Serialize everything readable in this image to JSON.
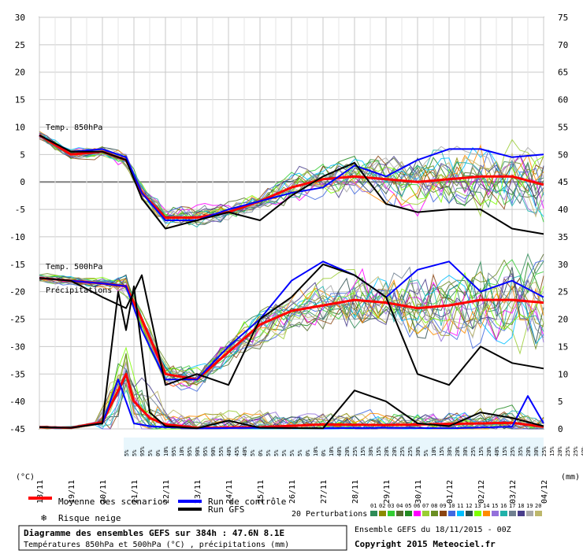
{
  "chart_data": {
    "type": "line",
    "title": "Diagramme des ensembles GEFS sur 384h : 47.6N 8.1E",
    "subtitle": "Températures 850hPa et 500hPa (°C) , précipitations (mm)",
    "source": "Ensemble GEFS du 18/11/2015 - 00Z",
    "copyright": "Copyright 2015 Meteociel.fr",
    "left_axis": {
      "unit_label": "(°C)",
      "ticks": [
        30,
        25,
        20,
        15,
        10,
        5,
        0,
        -5,
        -10,
        -15,
        -20,
        -25,
        -30,
        -35,
        -40,
        -45
      ],
      "range": [
        -45,
        30
      ]
    },
    "right_axis": {
      "unit_label": "(mm)",
      "ticks": [
        75,
        70,
        65,
        60,
        55,
        50,
        45,
        40,
        35,
        30,
        25,
        20,
        15,
        10,
        5,
        0
      ],
      "range": [
        0,
        75
      ]
    },
    "x_dates": [
      "18/11",
      "19/11",
      "20/11",
      "21/11",
      "22/11",
      "23/11",
      "24/11",
      "25/11",
      "26/11",
      "27/11",
      "28/11",
      "29/11",
      "30/11",
      "01/12",
      "02/12",
      "03/12",
      "04/12"
    ],
    "x_hours": [
      0,
      24,
      48,
      72,
      96,
      120,
      144,
      168,
      192,
      216,
      240,
      264,
      288,
      312,
      336,
      360,
      384
    ],
    "panel_labels": [
      "Temp. 850hPa",
      "Temp. 500hPa",
      "Précipitations"
    ],
    "snow_risk_percent": [
      "5%",
      "5%",
      "95%",
      "5%",
      "0%",
      "10%",
      "95%",
      "10%",
      "95%",
      "90%",
      "95%",
      "90%",
      "55%",
      "40%",
      "45%",
      "40%",
      "5%",
      "0%",
      "5%",
      "5%",
      "5%",
      "5%",
      "5%",
      "0%",
      "10%",
      "0%",
      "10%",
      "40%",
      "20%",
      "25%",
      "15%",
      "30%",
      "15%",
      "20%",
      "20%",
      "25%",
      "25%",
      "30%",
      "5%",
      "10%",
      "15%",
      "30%",
      "20%",
      "30%",
      "25%",
      "15%",
      "20%",
      "40%",
      "15%",
      "25%",
      "35%",
      "20%",
      "30%",
      "25%",
      "15%",
      "20%",
      "25%",
      "25%",
      "40%",
      "25%",
      "30%",
      "40%"
    ],
    "series": [
      {
        "name": "Moyenne des scénarios",
        "color": "#ff0000",
        "group": "850hPa",
        "x": [
          0,
          24,
          48,
          66,
          78,
          96,
          120,
          144,
          168,
          192,
          216,
          240,
          264,
          288,
          312,
          336,
          360,
          384
        ],
        "values": [
          8.5,
          5,
          5.5,
          4,
          -2,
          -6.5,
          -6.5,
          -5.5,
          -3.5,
          -1,
          0.5,
          1,
          0.5,
          0,
          0.5,
          1,
          1,
          -0.5
        ]
      },
      {
        "name": "Run de contrôle",
        "color": "#0000ff",
        "group": "850hPa",
        "x": [
          0,
          24,
          48,
          66,
          78,
          96,
          120,
          144,
          168,
          192,
          216,
          240,
          264,
          288,
          312,
          336,
          360,
          384
        ],
        "values": [
          8.5,
          5.5,
          6,
          4.5,
          -2,
          -7,
          -7,
          -5,
          -3.5,
          -2,
          -1,
          3,
          1,
          4,
          6,
          6,
          4.5,
          5
        ]
      },
      {
        "name": "Run GFS",
        "color": "#000000",
        "group": "850hPa",
        "x": [
          0,
          24,
          48,
          66,
          78,
          96,
          120,
          144,
          168,
          192,
          216,
          240,
          264,
          288,
          312,
          336,
          360,
          384
        ],
        "values": [
          8.5,
          5.5,
          5.5,
          4,
          -3,
          -8.5,
          -7,
          -5.5,
          -7,
          -2.5,
          1,
          3.5,
          -4,
          -5.5,
          -5,
          -5,
          -8.5,
          -9.5
        ]
      },
      {
        "name": "Moyenne des scénarios",
        "color": "#ff0000",
        "group": "500hPa",
        "x": [
          0,
          24,
          48,
          66,
          78,
          96,
          120,
          144,
          168,
          192,
          216,
          240,
          264,
          288,
          312,
          336,
          360,
          384
        ],
        "values": [
          -17.5,
          -18,
          -18.5,
          -19,
          -25,
          -35,
          -36,
          -31,
          -26,
          -23.5,
          -22.5,
          -21.5,
          -22,
          -23,
          -22.5,
          -21.5,
          -21.5,
          -22
        ]
      },
      {
        "name": "Run de contrôle",
        "color": "#0000ff",
        "group": "500hPa",
        "x": [
          0,
          24,
          48,
          66,
          78,
          96,
          120,
          144,
          168,
          192,
          216,
          240,
          264,
          288,
          312,
          336,
          360,
          384
        ],
        "values": [
          -17.5,
          -18,
          -18.5,
          -19,
          -27,
          -36,
          -36,
          -30,
          -25,
          -18,
          -14.5,
          -17,
          -21,
          -16,
          -14.5,
          -20,
          -18,
          -21
        ]
      },
      {
        "name": "Run GFS",
        "color": "#000000",
        "group": "500hPa",
        "x": [
          0,
          24,
          48,
          66,
          78,
          96,
          120,
          144,
          168,
          192,
          216,
          240,
          264,
          288,
          312,
          336,
          360,
          384
        ],
        "values": [
          -17.5,
          -18,
          -21,
          -23,
          -17,
          -37,
          -35,
          -37,
          -25,
          -21,
          -15,
          -17,
          -21,
          -35,
          -37,
          -30,
          -33,
          -34
        ]
      },
      {
        "name": "Moyenne des scénarios",
        "color": "#ff0000",
        "group": "precip_mm",
        "x": [
          0,
          24,
          48,
          60,
          66,
          72,
          84,
          96,
          120,
          168,
          216,
          264,
          312,
          360,
          384
        ],
        "values": [
          0.3,
          0.2,
          1.2,
          7,
          10,
          5,
          2,
          0.8,
          0.2,
          0.3,
          0.8,
          0.7,
          0.9,
          1.1,
          0.4
        ]
      },
      {
        "name": "Run de contrôle",
        "color": "#0000ff",
        "group": "precip_mm",
        "x": [
          0,
          24,
          48,
          60,
          66,
          72,
          84,
          96,
          120,
          168,
          216,
          264,
          312,
          360,
          372,
          384
        ],
        "values": [
          0.3,
          0.2,
          1,
          9,
          5,
          1,
          0.5,
          0.3,
          0.1,
          0.2,
          0.1,
          0.2,
          0.1,
          0.4,
          6,
          1
        ]
      },
      {
        "name": "Run GFS",
        "color": "#000000",
        "group": "precip_mm",
        "x": [
          0,
          24,
          48,
          60,
          66,
          72,
          84,
          96,
          120,
          144,
          168,
          216,
          240,
          264,
          276,
          288,
          312,
          336,
          360,
          384
        ],
        "values": [
          0.3,
          0.2,
          1,
          25,
          18,
          26,
          3,
          0.5,
          0.1,
          1.5,
          0.2,
          0.1,
          7,
          5,
          3,
          1,
          0.5,
          3,
          2,
          0.5
        ]
      }
    ],
    "legend": [
      {
        "label": "Moyenne des scénarios",
        "color": "#ff0000"
      },
      {
        "label": "Run de contrôle",
        "color": "#0000ff"
      },
      {
        "label": "Run GFS",
        "color": "#000000"
      },
      {
        "label": "Risque neige",
        "color": "#6fc8f0"
      }
    ],
    "perturbations": {
      "label": "20 Perturbations",
      "ids": [
        "01",
        "02",
        "03",
        "04",
        "05",
        "06",
        "07",
        "08",
        "09",
        "10",
        "11",
        "12",
        "13",
        "14",
        "15",
        "16",
        "17",
        "18",
        "19",
        "20"
      ],
      "colors": [
        "#2e8b57",
        "#8b8b00",
        "#32cd32",
        "#556b2f",
        "#228b22",
        "#ff00ff",
        "#9acd32",
        "#6b8e23",
        "#8b4513",
        "#4169e1",
        "#00bfff",
        "#2f4f4f",
        "#7fff00",
        "#ff8c00",
        "#9370db",
        "#20b2aa",
        "#708090",
        "#483d8b",
        "#a9a9a9",
        "#bdb76b"
      ]
    },
    "grid": true
  }
}
